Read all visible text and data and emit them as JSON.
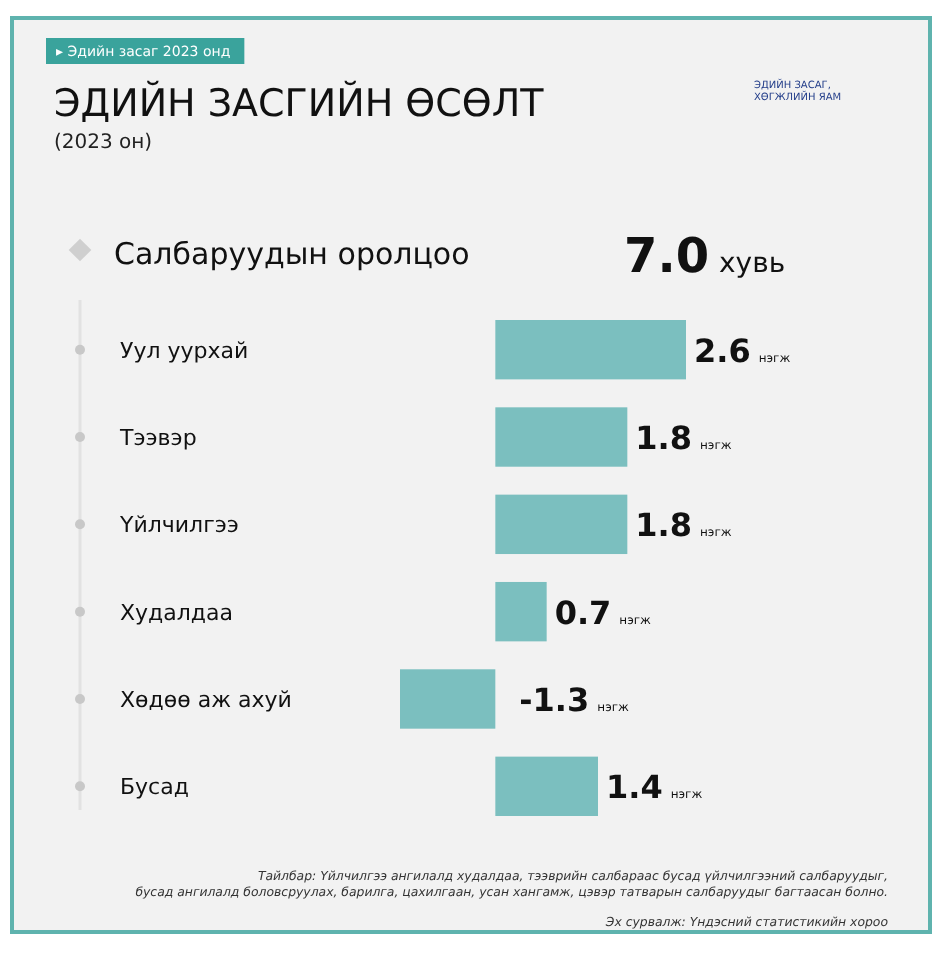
{
  "chart_data": {
    "type": "bar",
    "orientation": "horizontal",
    "title": "ЭДИЙН ЗАСГИЙН ӨСӨЛТ",
    "subtitle": "(2023 он)",
    "ylabel": "Салбаруудын оролцоо",
    "categories": [
      "Уул уурхай",
      "Тээвэр",
      "Үйлчилгээ",
      "Худалдаа",
      "Хөдөө аж ахуй",
      "Бусад"
    ],
    "values": [
      2.6,
      1.8,
      1.8,
      0.7,
      -1.3,
      1.4
    ],
    "value_labels": [
      "2.6 нэгж",
      "1.8 нэгж",
      "1.8 нэгж",
      "0.7 нэгж",
      "-1.3 нэгж",
      "1.4 нэгж"
    ],
    "color": "#7bbfbf",
    "annotations": [
      "▸ Эдийн засаг 2023 онд",
      "7.0 хувь",
      "ЭДИЙН ЗАСАГ, ХӨГЖЛИЙН ЯАМ",
      "Тайлбар: Үйлчилгээ ангилалд худалдаа, тээврийн салбараас бусад үйлчилгээний салбаруудыг, бусад ангилалд боловсруулах, барилга, цахилгаан, усан хангамж, цэвэр татварын салбаруудыг багтаасан болно.",
      "Эх сурвалж: Үндэсний статистикийн хороо"
    ]
  }
}
